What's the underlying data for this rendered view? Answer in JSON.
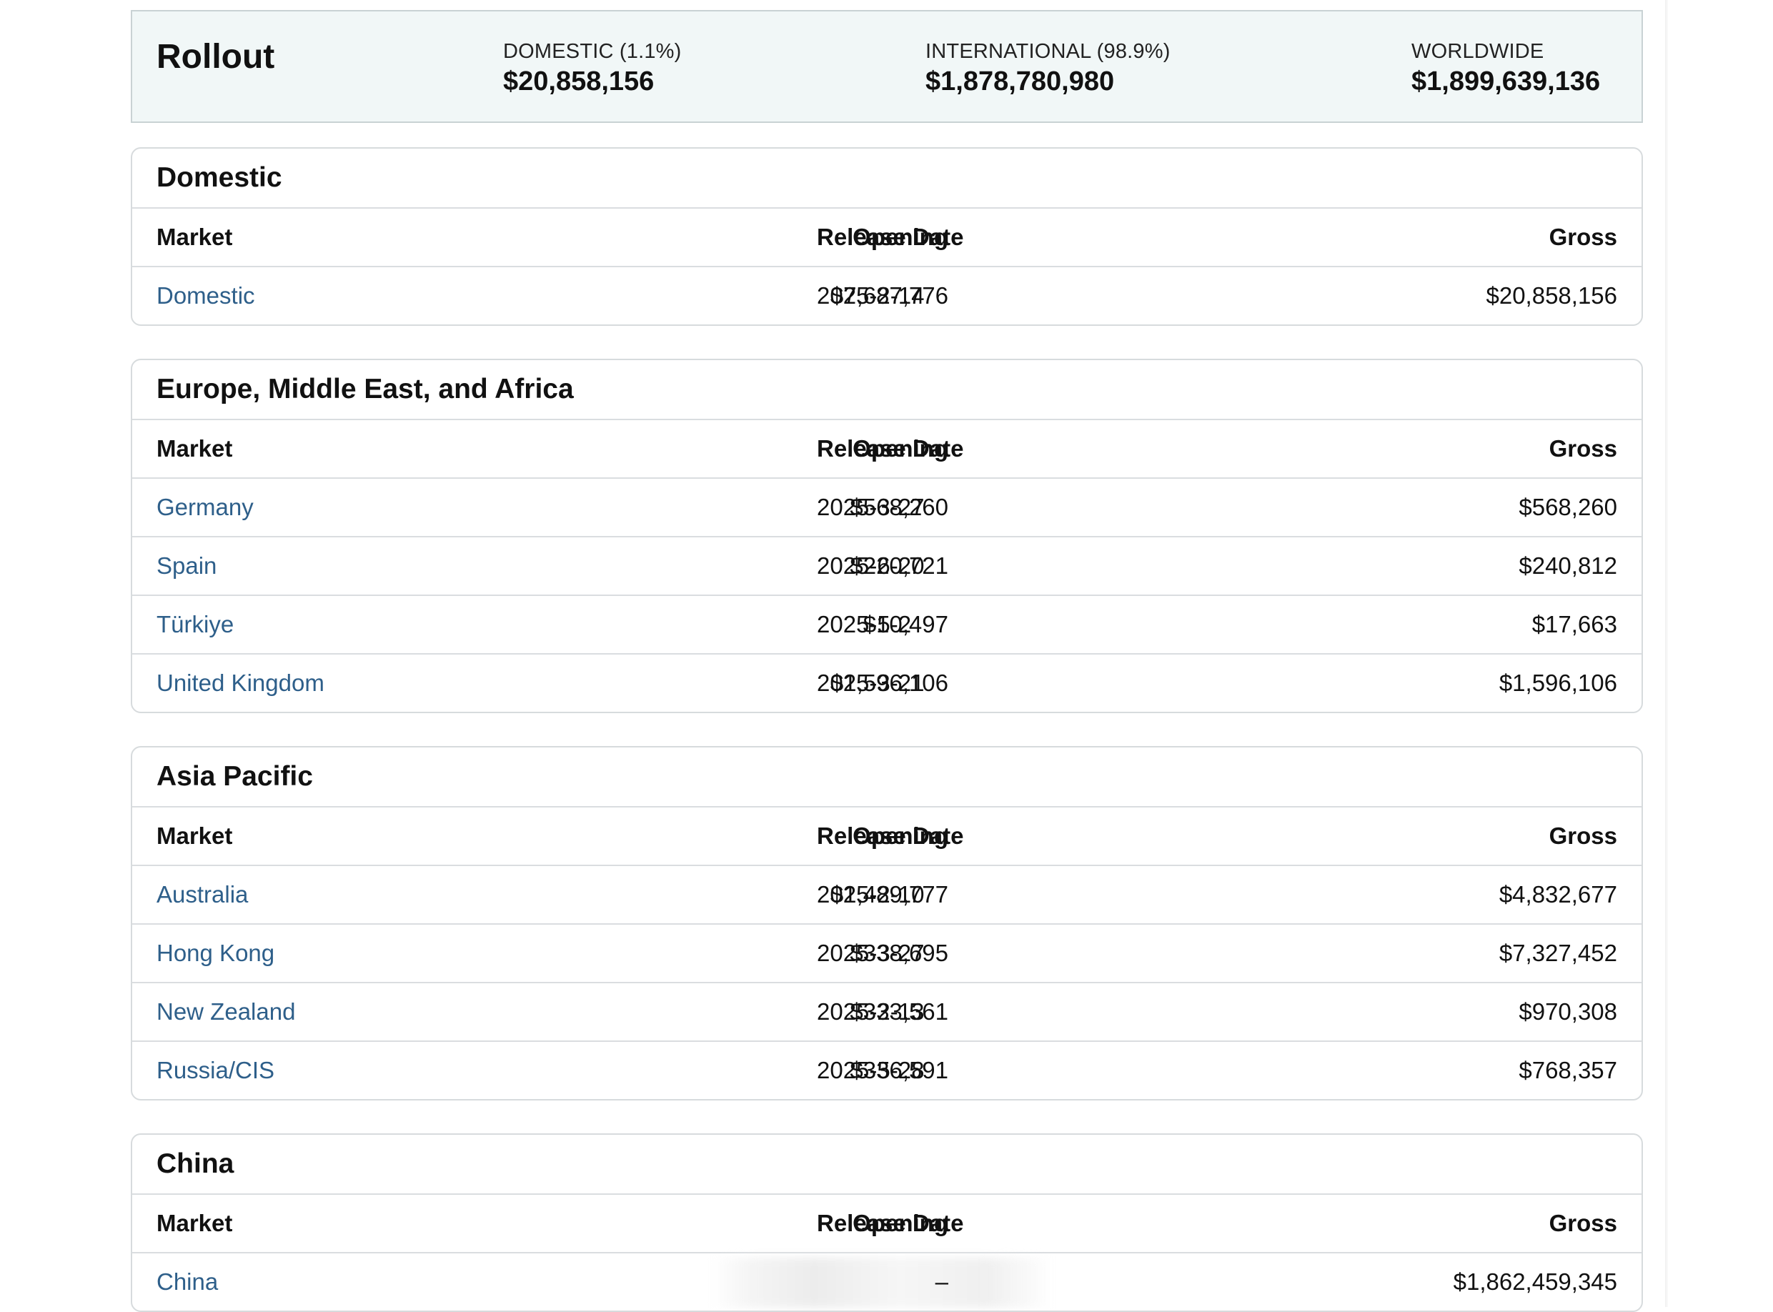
{
  "summary": {
    "title": "Rollout",
    "domestic_label": "DOMESTIC (1.1%)",
    "domestic_value": "$20,858,156",
    "international_label": "INTERNATIONAL (98.9%)",
    "international_value": "$1,878,780,980",
    "worldwide_label": "WORLDWIDE",
    "worldwide_value": "$1,899,639,136"
  },
  "columns": {
    "market": "Market",
    "release_date": "Release Date",
    "opening": "Opening",
    "gross": "Gross"
  },
  "sections": [
    {
      "title": "Domestic",
      "rows": [
        {
          "market": "Domestic",
          "release_date": "2025-2-14",
          "opening": "$7,687,776",
          "gross": "$20,858,156"
        }
      ]
    },
    {
      "title": "Europe, Middle East, and Africa",
      "rows": [
        {
          "market": "Germany",
          "release_date": "2025-3-27",
          "opening": "$568,260",
          "gross": "$568,260"
        },
        {
          "market": "Spain",
          "release_date": "2025-6-20",
          "opening": "$220,721",
          "gross": "$240,812"
        },
        {
          "market": "Türkiye",
          "release_date": "2025-5-2",
          "opening": "$10,497",
          "gross": "$17,663"
        },
        {
          "market": "United Kingdom",
          "release_date": "2025-3-21",
          "opening": "$1,596,106",
          "gross": "$1,596,106"
        }
      ]
    },
    {
      "title": "Asia Pacific",
      "rows": [
        {
          "market": "Australia",
          "release_date": "2025-2-10",
          "opening": "$1,489,777",
          "gross": "$4,832,677"
        },
        {
          "market": "Hong Kong",
          "release_date": "2025-3-27",
          "opening": "$338,695",
          "gross": "$7,327,452"
        },
        {
          "market": "New Zealand",
          "release_date": "2025-2-13",
          "opening": "$333,561",
          "gross": "$970,308"
        },
        {
          "market": "Russia/CIS",
          "release_date": "2025-5-28",
          "opening": "$336,591",
          "gross": "$768,357"
        }
      ]
    },
    {
      "title": "China",
      "rows": [
        {
          "market": "China",
          "release_date": "",
          "opening": "–",
          "gross": "$1,862,459,345"
        }
      ]
    }
  ]
}
